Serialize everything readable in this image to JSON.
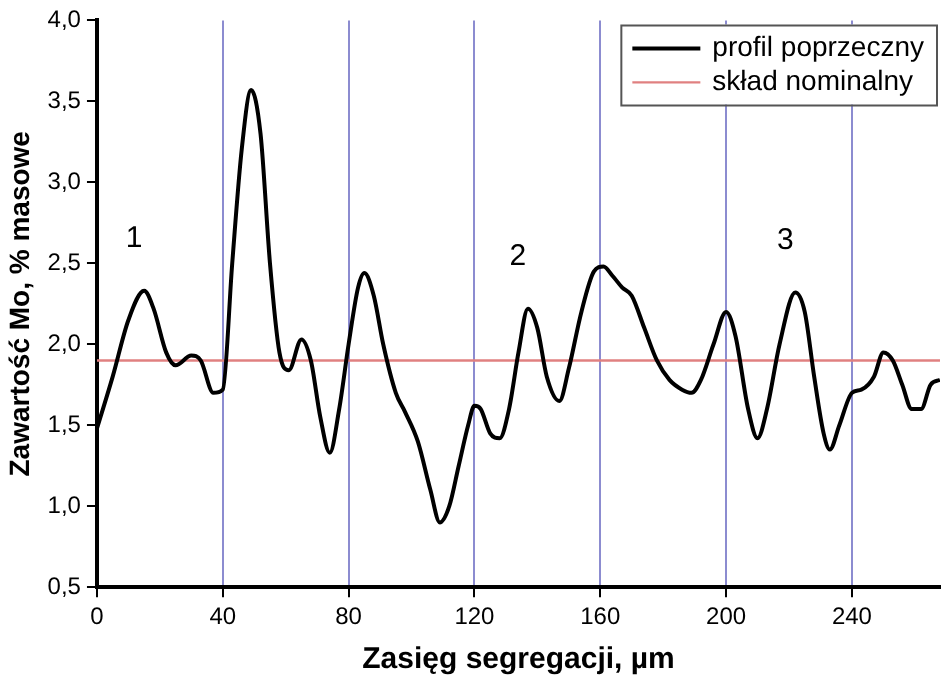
{
  "chart_data": {
    "type": "line",
    "xlabel": "Zasięg segregacji, µm",
    "ylabel": "Zawartość Mo, % masowe",
    "x": [
      0,
      5,
      10,
      15,
      18,
      22,
      25,
      30,
      33,
      37,
      40,
      43,
      46,
      49,
      52,
      55,
      58,
      61,
      65,
      68,
      71,
      74,
      77,
      80,
      83,
      85,
      88,
      91,
      95,
      98,
      102,
      106,
      109,
      112,
      115,
      118,
      120,
      122,
      125,
      128,
      131,
      134,
      137,
      140,
      143,
      147,
      150,
      154,
      158,
      161,
      164,
      167,
      170,
      174,
      178,
      182,
      186,
      189,
      192,
      196,
      200,
      203,
      207,
      210,
      213,
      217,
      222,
      225,
      228,
      231,
      233,
      236,
      240,
      243,
      247,
      250,
      253,
      256,
      259,
      262,
      265,
      268
    ],
    "series": [
      {
        "name": "profil poprzeczny",
        "color": "#000000",
        "values": [
          1.48,
          1.8,
          2.15,
          2.33,
          2.22,
          1.95,
          1.87,
          1.93,
          1.9,
          1.7,
          1.72,
          2.5,
          3.2,
          3.57,
          3.3,
          2.5,
          1.95,
          1.84,
          2.03,
          1.9,
          1.55,
          1.33,
          1.6,
          2.0,
          2.35,
          2.44,
          2.3,
          2.0,
          1.7,
          1.58,
          1.4,
          1.1,
          0.9,
          1.0,
          1.25,
          1.5,
          1.62,
          1.6,
          1.45,
          1.42,
          1.6,
          1.95,
          2.22,
          2.1,
          1.8,
          1.65,
          1.85,
          2.2,
          2.45,
          2.48,
          2.42,
          2.35,
          2.3,
          2.1,
          1.9,
          1.78,
          1.72,
          1.7,
          1.78,
          2.0,
          2.2,
          2.05,
          1.6,
          1.42,
          1.6,
          2.0,
          2.32,
          2.2,
          1.8,
          1.45,
          1.35,
          1.5,
          1.7,
          1.72,
          1.8,
          1.95,
          1.9,
          1.75,
          1.6,
          1.6,
          1.75,
          1.78
        ]
      }
    ],
    "ref_lines": [
      {
        "axis": "y",
        "value": 1.9,
        "label": "skład nominalny",
        "color": "#e08080"
      }
    ],
    "annotations": [
      {
        "text": "1",
        "x": 15,
        "y": 2.33
      },
      {
        "text": "2",
        "x": 137,
        "y": 2.22
      },
      {
        "text": "3",
        "x": 222,
        "y": 2.32
      }
    ],
    "xlim": [
      0,
      268
    ],
    "xticks": [
      0,
      40,
      80,
      120,
      160,
      200,
      240
    ],
    "ylim": [
      0.5,
      4.0
    ],
    "yticks": [
      {
        "value": 0.5,
        "label": "0,5"
      },
      {
        "value": 1.0,
        "label": "1,0"
      },
      {
        "value": 1.5,
        "label": "1,5"
      },
      {
        "value": 2.0,
        "label": "2,0"
      },
      {
        "value": 2.5,
        "label": "2,5"
      },
      {
        "value": 3.0,
        "label": "3,0"
      },
      {
        "value": 3.5,
        "label": "3,5"
      },
      {
        "value": 4.0,
        "label": "4,0"
      }
    ],
    "grid": "x",
    "legend": "top right",
    "marker": "none",
    "line_style": "solid"
  }
}
